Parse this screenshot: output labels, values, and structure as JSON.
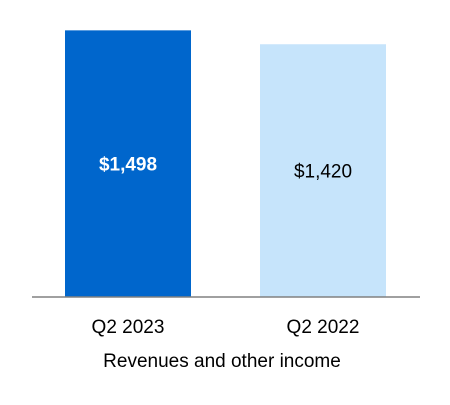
{
  "chart_data": {
    "type": "bar",
    "categories": [
      "Q2 2023",
      "Q2 2022"
    ],
    "values": [
      1498,
      1420
    ],
    "value_labels": [
      "$1,498",
      "$1,420"
    ],
    "title": "",
    "xlabel": "Revenues and other income",
    "ylabel": "",
    "ylim": [
      0,
      1500
    ],
    "grid": false,
    "legend": "none",
    "colors": {
      "bars": [
        "#0066cc",
        "#c6e4fb"
      ],
      "value_labels": [
        "#ffffff",
        "#000000"
      ],
      "value_label_weight": [
        "bold",
        "normal"
      ],
      "axis": "#808080",
      "text": "#000000"
    }
  }
}
